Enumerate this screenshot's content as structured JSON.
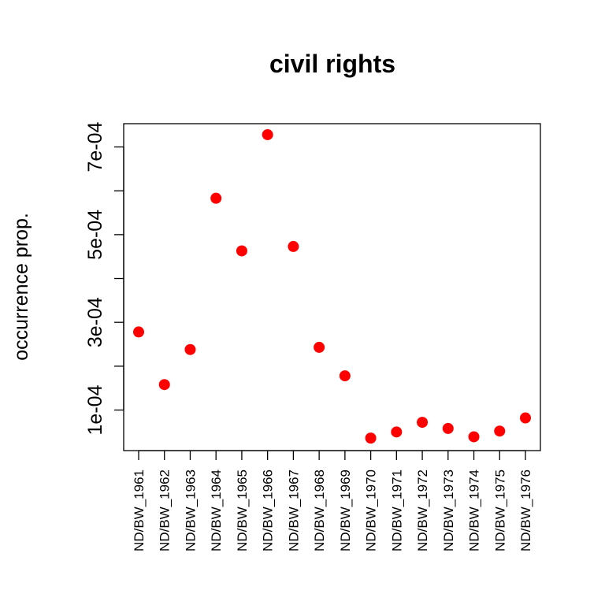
{
  "chart_data": {
    "type": "scatter",
    "title": "civil rights",
    "xlabel": "",
    "ylabel": "occurrence prop.",
    "categories": [
      "ND/BW_1961",
      "ND/BW_1962",
      "ND/BW_1963",
      "ND/BW_1964",
      "ND/BW_1965",
      "ND/BW_1966",
      "ND/BW_1967",
      "ND/BW_1968",
      "ND/BW_1969",
      "ND/BW_1970",
      "ND/BW_1971",
      "ND/BW_1972",
      "ND/BW_1973",
      "ND/BW_1974",
      "ND/BW_1975",
      "ND/BW_1976"
    ],
    "values": [
      0.000278,
      0.000158,
      0.000238,
      0.000583,
      0.000463,
      0.000728,
      0.000473,
      0.000243,
      0.000178,
      3.6e-05,
      5e-05,
      7.2e-05,
      5.8e-05,
      3.9e-05,
      5.2e-05,
      8.2e-05
    ],
    "ylim": [
      3e-05,
      0.00075
    ],
    "yticks": [
      0.0001,
      0.0002,
      0.0003,
      0.0004,
      0.0005,
      0.0006,
      0.0007
    ],
    "ytick_labels": [
      "1e-04",
      "",
      "3e-04",
      "",
      "5e-04",
      "",
      "7e-04"
    ],
    "point_color": "#ff0000",
    "grid": false
  }
}
